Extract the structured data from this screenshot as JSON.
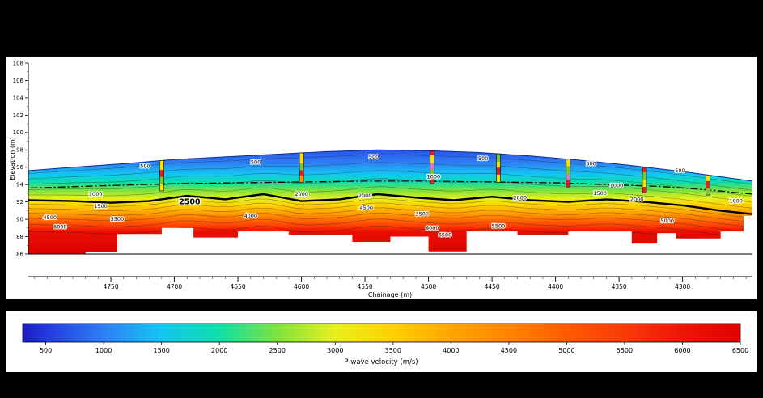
{
  "figure": {
    "background_color": "#000000",
    "panel_color": "#ffffff"
  },
  "chart_data": {
    "type": "heatmap",
    "subtype": "seismic-refraction-tomography-cross-section",
    "title": "",
    "xlabel": "Chainage (m)",
    "ylabel": "Elevation (m)",
    "x_range": [
      4815,
      4245
    ],
    "x_axis_reversed": true,
    "x_ticks": [
      4750,
      4700,
      4650,
      4600,
      4550,
      4500,
      4450,
      4400,
      4350,
      4300
    ],
    "y_range": [
      86,
      108
    ],
    "y_ticks": [
      86,
      88,
      90,
      92,
      94,
      96,
      98,
      100,
      102,
      104,
      106,
      108
    ],
    "colorbar": {
      "label": "P-wave velocity (m/s)",
      "ticks": [
        500,
        1000,
        1500,
        2000,
        2500,
        3000,
        3500,
        4000,
        4500,
        5000,
        5500,
        6000,
        6500
      ],
      "range": [
        300,
        6500
      ],
      "stops": [
        {
          "v": 300,
          "color": "#1b1bbf"
        },
        {
          "v": 500,
          "color": "#2238dd"
        },
        {
          "v": 1000,
          "color": "#2f7ff5"
        },
        {
          "v": 1500,
          "color": "#12c6f2"
        },
        {
          "v": 2000,
          "color": "#0ddfa8"
        },
        {
          "v": 2500,
          "color": "#7fe23c"
        },
        {
          "v": 3000,
          "color": "#e8ef1e"
        },
        {
          "v": 3500,
          "color": "#ffd000"
        },
        {
          "v": 4000,
          "color": "#ffa400"
        },
        {
          "v": 4500,
          "color": "#ff8400"
        },
        {
          "v": 5000,
          "color": "#ff5a00"
        },
        {
          "v": 5500,
          "color": "#fa3a08"
        },
        {
          "v": 6000,
          "color": "#ee1606"
        },
        {
          "v": 6500,
          "color": "#e00000"
        }
      ]
    },
    "section_fill": [
      {
        "e": 99.0,
        "color": "#2238dd"
      },
      {
        "e": 96.5,
        "color": "#2f7ff5"
      },
      {
        "e": 95.2,
        "color": "#12c6f2"
      },
      {
        "e": 94.2,
        "color": "#0ddfa8"
      },
      {
        "e": 93.3,
        "color": "#7fe23c"
      },
      {
        "e": 92.4,
        "color": "#e8ef1e"
      },
      {
        "e": 91.6,
        "color": "#ffd000"
      },
      {
        "e": 90.8,
        "color": "#ffa400"
      },
      {
        "e": 90.0,
        "color": "#ff7000"
      },
      {
        "e": 89.2,
        "color": "#ff3a04"
      },
      {
        "e": 88.6,
        "color": "#ea0f02"
      },
      {
        "e": 86.0,
        "color": "#dd0000"
      }
    ],
    "surface_profile": [
      [
        4245,
        94.4
      ],
      [
        4270,
        94.9
      ],
      [
        4300,
        95.5
      ],
      [
        4340,
        96.2
      ],
      [
        4380,
        96.8
      ],
      [
        4420,
        97.3
      ],
      [
        4460,
        97.7
      ],
      [
        4500,
        97.9
      ],
      [
        4540,
        98.0
      ],
      [
        4580,
        97.8
      ],
      [
        4620,
        97.5
      ],
      [
        4660,
        97.2
      ],
      [
        4700,
        96.9
      ],
      [
        4740,
        96.4
      ],
      [
        4780,
        96.0
      ],
      [
        4815,
        95.6
      ]
    ],
    "bedrock_interface": [
      [
        4245,
        90.6
      ],
      [
        4270,
        91.0
      ],
      [
        4300,
        91.6
      ],
      [
        4330,
        92.0
      ],
      [
        4360,
        92.3
      ],
      [
        4390,
        92.0
      ],
      [
        4420,
        92.2
      ],
      [
        4450,
        92.6
      ],
      [
        4480,
        92.2
      ],
      [
        4510,
        92.5
      ],
      [
        4540,
        92.9
      ],
      [
        4570,
        92.3
      ],
      [
        4600,
        92.1
      ],
      [
        4630,
        92.9
      ],
      [
        4660,
        92.3
      ],
      [
        4690,
        92.7
      ],
      [
        4720,
        92.1
      ],
      [
        4750,
        91.9
      ],
      [
        4780,
        92.1
      ],
      [
        4815,
        92.2
      ]
    ],
    "water_table": [
      [
        4245,
        92.9
      ],
      [
        4280,
        93.4
      ],
      [
        4320,
        93.8
      ],
      [
        4360,
        94.0
      ],
      [
        4400,
        94.2
      ],
      [
        4450,
        94.3
      ],
      [
        4500,
        94.4
      ],
      [
        4550,
        94.4
      ],
      [
        4600,
        94.3
      ],
      [
        4650,
        94.2
      ],
      [
        4700,
        94.1
      ],
      [
        4750,
        93.9
      ],
      [
        4815,
        93.6
      ]
    ],
    "bottom_profile": [
      [
        4245,
        90.4
      ],
      [
        4252,
        90.4
      ],
      [
        4252,
        88.6
      ],
      [
        4270,
        88.6
      ],
      [
        4270,
        87.8
      ],
      [
        4305,
        87.8
      ],
      [
        4305,
        88.4
      ],
      [
        4320,
        88.4
      ],
      [
        4320,
        87.2
      ],
      [
        4340,
        87.2
      ],
      [
        4340,
        88.6
      ],
      [
        4390,
        88.6
      ],
      [
        4390,
        88.2
      ],
      [
        4430,
        88.2
      ],
      [
        4430,
        88.6
      ],
      [
        4470,
        88.6
      ],
      [
        4470,
        86.3
      ],
      [
        4500,
        86.3
      ],
      [
        4500,
        88.0
      ],
      [
        4530,
        88.0
      ],
      [
        4530,
        87.4
      ],
      [
        4560,
        87.4
      ],
      [
        4560,
        88.2
      ],
      [
        4610,
        88.2
      ],
      [
        4610,
        88.6
      ],
      [
        4650,
        88.6
      ],
      [
        4650,
        87.9
      ],
      [
        4685,
        87.9
      ],
      [
        4685,
        89.0
      ],
      [
        4710,
        89.0
      ],
      [
        4710,
        88.3
      ],
      [
        4745,
        88.3
      ],
      [
        4745,
        86.2
      ],
      [
        4770,
        86.2
      ],
      [
        4770,
        86.0
      ],
      [
        4815,
        86.0
      ]
    ],
    "upper_contour_fractions": [
      0.1,
      0.28,
      0.46,
      0.64,
      0.82
    ],
    "lower_contour_offsets": [
      0.45,
      0.95,
      1.5,
      2.1,
      2.8,
      3.6
    ],
    "contour_labels": [
      {
        "v": 500,
        "x": 4723,
        "y": 96.1
      },
      {
        "v": 500,
        "x": 4636,
        "y": 96.6
      },
      {
        "v": 500,
        "x": 4543,
        "y": 97.2
      },
      {
        "v": 500,
        "x": 4457,
        "y": 97.0
      },
      {
        "v": 500,
        "x": 4372,
        "y": 96.4
      },
      {
        "v": 500,
        "x": 4302,
        "y": 95.6
      },
      {
        "v": 1000,
        "x": 4762,
        "y": 92.9
      },
      {
        "v": 1000,
        "x": 4496,
        "y": 94.9
      },
      {
        "v": 1000,
        "x": 4352,
        "y": 93.9
      },
      {
        "v": 1000,
        "x": 4258,
        "y": 92.1
      },
      {
        "v": 1500,
        "x": 4758,
        "y": 91.5
      },
      {
        "v": 1500,
        "x": 4365,
        "y": 93.0
      },
      {
        "v": 2000,
        "x": 4600,
        "y": 92.9
      },
      {
        "v": 2000,
        "x": 4550,
        "y": 92.7
      },
      {
        "v": 2000,
        "x": 4428,
        "y": 92.5
      },
      {
        "v": 2000,
        "x": 4336,
        "y": 92.3
      },
      {
        "v": 2500,
        "x": 4688,
        "y": 91.9,
        "big": true
      },
      {
        "v": 3500,
        "x": 4745,
        "y": 90.0
      },
      {
        "v": 3500,
        "x": 4505,
        "y": 90.6
      },
      {
        "v": 4000,
        "x": 4640,
        "y": 90.4
      },
      {
        "v": 4500,
        "x": 4798,
        "y": 90.2
      },
      {
        "v": 4500,
        "x": 4549,
        "y": 91.3
      },
      {
        "v": 5000,
        "x": 4312,
        "y": 89.8
      },
      {
        "v": 5500,
        "x": 4445,
        "y": 89.2
      },
      {
        "v": 6000,
        "x": 4790,
        "y": 89.1
      },
      {
        "v": 6000,
        "x": 4497,
        "y": 89.0
      },
      {
        "v": 6500,
        "x": 4487,
        "y": 88.2
      }
    ],
    "boreholes": [
      {
        "chainage": 4710,
        "segments": [
          {
            "color": "#ffe000",
            "h": 1.1
          },
          {
            "color": "#e02020",
            "h": 0.8
          },
          {
            "color": "#78c832",
            "h": 0.9
          },
          {
            "color": "#ffe000",
            "h": 0.7
          }
        ]
      },
      {
        "chainage": 4600,
        "segments": [
          {
            "color": "#ffe000",
            "h": 1.2
          },
          {
            "color": "#78c832",
            "h": 0.8
          },
          {
            "color": "#e02020",
            "h": 0.6
          },
          {
            "color": "#ff9000",
            "h": 0.8
          }
        ]
      },
      {
        "chainage": 4497,
        "segments": [
          {
            "color": "#e02020",
            "h": 0.5
          },
          {
            "color": "#ffe000",
            "h": 0.9
          },
          {
            "color": "#d080c0",
            "h": 0.8
          },
          {
            "color": "#78c832",
            "h": 0.7
          },
          {
            "color": "#e02020",
            "h": 0.9
          }
        ]
      },
      {
        "chainage": 4445,
        "segments": [
          {
            "color": "#78c832",
            "h": 0.9
          },
          {
            "color": "#ffe000",
            "h": 0.7
          },
          {
            "color": "#e02020",
            "h": 0.8
          },
          {
            "color": "#ffe000",
            "h": 0.9
          }
        ]
      },
      {
        "chainage": 4390,
        "segments": [
          {
            "color": "#ffe000",
            "h": 0.8
          },
          {
            "color": "#78c832",
            "h": 0.9
          },
          {
            "color": "#d080c0",
            "h": 0.7
          },
          {
            "color": "#e02020",
            "h": 0.8
          }
        ]
      },
      {
        "chainage": 4330,
        "segments": [
          {
            "color": "#e02020",
            "h": 0.6
          },
          {
            "color": "#78c832",
            "h": 0.9
          },
          {
            "color": "#ffe000",
            "h": 0.8
          },
          {
            "color": "#e02020",
            "h": 0.7
          }
        ]
      },
      {
        "chainage": 4280,
        "segments": [
          {
            "color": "#ffe000",
            "h": 0.7
          },
          {
            "color": "#e02020",
            "h": 0.8
          },
          {
            "color": "#78c832",
            "h": 0.8
          }
        ]
      }
    ]
  }
}
